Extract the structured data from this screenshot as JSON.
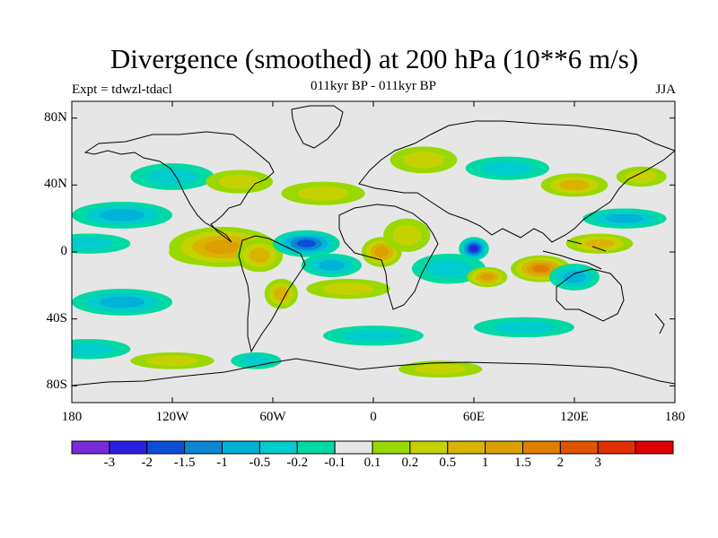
{
  "title": "Divergence (smoothed) at 200 hPa (10**6 m/s)",
  "experiment": "Expt = tdwzl-tdacl",
  "subtitle": "011kyr BP - 011kyr BP",
  "season": "JJA",
  "map": {
    "projection": "cylindrical-equidistant",
    "lon_range": [
      -180,
      180
    ],
    "lat_range": [
      -90,
      90
    ],
    "background_color": "#e6e6e6",
    "lat_ticks": [
      {
        "value": 80,
        "label": "80N"
      },
      {
        "value": 40,
        "label": "40N"
      },
      {
        "value": 0,
        "label": "0"
      },
      {
        "value": -40,
        "label": "40S"
      },
      {
        "value": -80,
        "label": "80S"
      }
    ],
    "lon_ticks": [
      {
        "value": -180,
        "label": "180"
      },
      {
        "value": -120,
        "label": "120W"
      },
      {
        "value": -60,
        "label": "60W"
      },
      {
        "value": 0,
        "label": "0"
      },
      {
        "value": 60,
        "label": "60E"
      },
      {
        "value": 120,
        "label": "120E"
      },
      {
        "value": 180,
        "label": "180"
      }
    ],
    "fields": [
      {
        "lon": -100,
        "lat": 0,
        "value": 2.0,
        "rx": 22,
        "ry": 8
      },
      {
        "lon": -90,
        "lat": 3,
        "value": 1.4,
        "rx": 32,
        "ry": 12
      },
      {
        "lon": -68,
        "lat": -2,
        "value": 0.9,
        "rx": 14,
        "ry": 10
      },
      {
        "lon": -55,
        "lat": -25,
        "value": 0.6,
        "rx": 10,
        "ry": 9
      },
      {
        "lon": -40,
        "lat": 5,
        "value": -1.6,
        "rx": 20,
        "ry": 8
      },
      {
        "lon": -25,
        "lat": -8,
        "value": -0.5,
        "rx": 18,
        "ry": 7
      },
      {
        "lon": -15,
        "lat": -22,
        "value": 0.4,
        "rx": 25,
        "ry": 6
      },
      {
        "lon": 5,
        "lat": 0,
        "value": 1.2,
        "rx": 12,
        "ry": 9
      },
      {
        "lon": 20,
        "lat": 10,
        "value": 0.3,
        "rx": 14,
        "ry": 10
      },
      {
        "lon": 45,
        "lat": -10,
        "value": -0.4,
        "rx": 22,
        "ry": 9
      },
      {
        "lon": 60,
        "lat": 2,
        "value": -2.8,
        "rx": 9,
        "ry": 7
      },
      {
        "lon": 68,
        "lat": -15,
        "value": 1.1,
        "rx": 12,
        "ry": 6
      },
      {
        "lon": 100,
        "lat": -10,
        "value": 1.6,
        "rx": 18,
        "ry": 8
      },
      {
        "lon": 120,
        "lat": -15,
        "value": -0.6,
        "rx": 15,
        "ry": 8
      },
      {
        "lon": 135,
        "lat": 5,
        "value": 0.8,
        "rx": 20,
        "ry": 6
      },
      {
        "lon": 150,
        "lat": 20,
        "value": -0.6,
        "rx": 25,
        "ry": 6
      },
      {
        "lon": -150,
        "lat": 22,
        "value": -0.6,
        "rx": 30,
        "ry": 8
      },
      {
        "lon": -170,
        "lat": 5,
        "value": -0.4,
        "rx": 25,
        "ry": 6
      },
      {
        "lon": -150,
        "lat": -30,
        "value": -0.5,
        "rx": 30,
        "ry": 8
      },
      {
        "lon": -170,
        "lat": -58,
        "value": -0.4,
        "rx": 25,
        "ry": 6
      },
      {
        "lon": -120,
        "lat": 45,
        "value": -0.4,
        "rx": 25,
        "ry": 8
      },
      {
        "lon": -80,
        "lat": 42,
        "value": 0.4,
        "rx": 20,
        "ry": 7
      },
      {
        "lon": -30,
        "lat": 35,
        "value": 0.4,
        "rx": 25,
        "ry": 7
      },
      {
        "lon": 30,
        "lat": 55,
        "value": 0.4,
        "rx": 20,
        "ry": 8
      },
      {
        "lon": 80,
        "lat": 50,
        "value": -0.4,
        "rx": 25,
        "ry": 7
      },
      {
        "lon": 120,
        "lat": 40,
        "value": 0.5,
        "rx": 20,
        "ry": 7
      },
      {
        "lon": 160,
        "lat": 45,
        "value": 0.3,
        "rx": 15,
        "ry": 6
      },
      {
        "lon": 0,
        "lat": -50,
        "value": -0.3,
        "rx": 30,
        "ry": 6
      },
      {
        "lon": 90,
        "lat": -45,
        "value": -0.3,
        "rx": 30,
        "ry": 6
      },
      {
        "lon": -120,
        "lat": -65,
        "value": 0.3,
        "rx": 25,
        "ry": 5
      },
      {
        "lon": -70,
        "lat": -65,
        "value": -0.4,
        "rx": 15,
        "ry": 5
      },
      {
        "lon": 40,
        "lat": -70,
        "value": 0.3,
        "rx": 25,
        "ry": 5
      }
    ]
  },
  "colorbar": {
    "colors": [
      "#7a2bd8",
      "#2e1ee0",
      "#0a4fd6",
      "#0b86d2",
      "#00b2d6",
      "#00ccce",
      "#00d9a3",
      "#e6e6e6",
      "#9ad800",
      "#c6d200",
      "#d8b400",
      "#dba000",
      "#df7f00",
      "#e05400",
      "#e03000",
      "#e00000"
    ],
    "labels": [
      "-3",
      "-2",
      "-1.5",
      "-1",
      "-0.5",
      "-0.2",
      "-0.1",
      "0.1",
      "0.2",
      "0.5",
      "1",
      "1.5",
      "2",
      "3"
    ]
  }
}
